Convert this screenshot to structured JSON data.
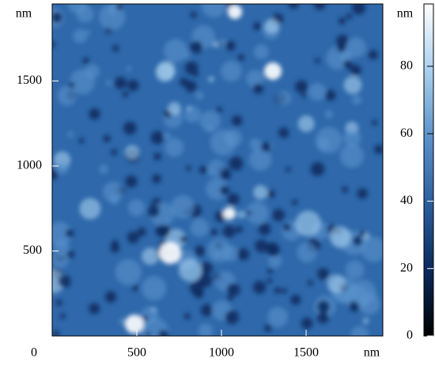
{
  "chart_data": {
    "type": "image",
    "x_unit": "nm",
    "y_unit": "nm",
    "colorbar_unit": "nm",
    "xlim": [
      0,
      1953
    ],
    "ylim": [
      0,
      1953
    ],
    "xticks": [
      0,
      500,
      1000,
      1500
    ],
    "yticks": [
      500,
      1000,
      1500
    ],
    "colorbar_lim": [
      0,
      98.5
    ],
    "colorbar_ticks": [
      0,
      20,
      40,
      60,
      80
    ],
    "colormap": [
      "#000000",
      "#0a2a5e",
      "#2a5fa0",
      "#5a92cc",
      "#a9d0ee",
      "#ffffff"
    ]
  }
}
